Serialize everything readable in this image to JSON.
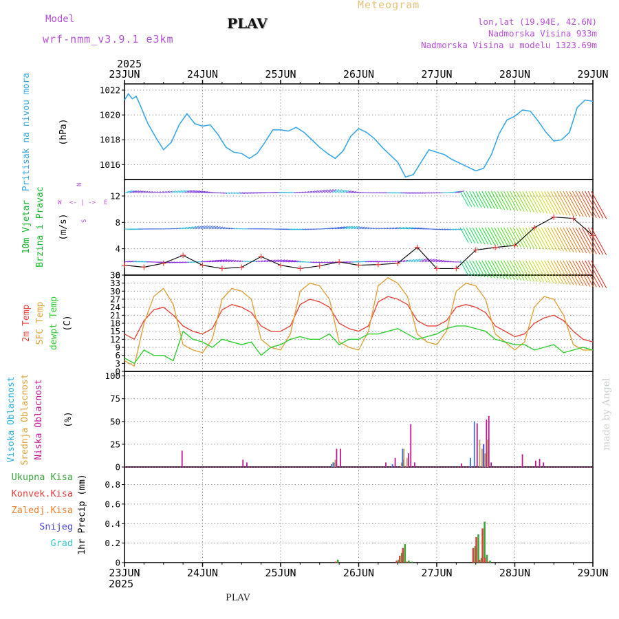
{
  "header": {
    "model_label": "Model",
    "model_run": "wrf-nmm_v3.9.1  e3km",
    "place": "PLAV",
    "title": "Meteogram",
    "coords": "lon,lat (19.94E, 42.6N)",
    "elevation": "Nadmorska Visina 933m",
    "model_elevation": "Nadmorska Visina u modelu 1323.69m",
    "credit": "made by Angel",
    "footer_place": "PLAV"
  },
  "colors": {
    "pressure": "#3aa7e6",
    "temp2m": "#e8473c",
    "sfc_temp": "#e0a13a",
    "dewpt": "#2fcf2f",
    "high_cloud": "#3f6fe0",
    "mid_cloud": "#b7a05a",
    "low_cloud": "#c2158f",
    "total_precip": "#3aa63a",
    "conv_precip": "#e04040",
    "frozen_precip": "#f08030",
    "snow": "#4a4ae0",
    "graupel": "#39c6c6"
  },
  "chart_data": [
    {
      "type": "line",
      "panel": "pressure",
      "ylabel": [
        "Pritisak na nivou mora",
        "(hPa)"
      ],
      "x_axis": {
        "year": "2025",
        "ticks": [
          "23JUN",
          "24JUN",
          "25JUN",
          "26JUN",
          "27JUN",
          "28JUN",
          "29JUN"
        ],
        "xlim_days": [
          0,
          6
        ]
      },
      "ylim": [
        1014.8,
        1022.5
      ],
      "yticks": [
        1016,
        1018,
        1020,
        1022
      ],
      "x": [
        0,
        0.05,
        0.1,
        0.15,
        0.2,
        0.3,
        0.4,
        0.5,
        0.6,
        0.7,
        0.8,
        0.9,
        1,
        1.1,
        1.2,
        1.3,
        1.4,
        1.5,
        1.6,
        1.7,
        1.8,
        1.9,
        2,
        2.1,
        2.2,
        2.3,
        2.4,
        2.5,
        2.6,
        2.7,
        2.8,
        2.9,
        3,
        3.1,
        3.2,
        3.3,
        3.4,
        3.5,
        3.6,
        3.7,
        3.8,
        3.9,
        4,
        4.1,
        4.2,
        4.3,
        4.4,
        4.5,
        4.6,
        4.7,
        4.8,
        4.9,
        5,
        5.1,
        5.2,
        5.3,
        5.4,
        5.5,
        5.6,
        5.7,
        5.8,
        5.9,
        6
      ],
      "values": [
        1021.2,
        1021.7,
        1021.3,
        1021.5,
        1020.8,
        1019.3,
        1018.2,
        1017.2,
        1017.8,
        1019.2,
        1020.1,
        1019.3,
        1019.1,
        1019.2,
        1018.4,
        1017.4,
        1017.0,
        1016.9,
        1016.5,
        1016.9,
        1017.8,
        1018.8,
        1018.8,
        1018.7,
        1019.0,
        1018.6,
        1018.0,
        1017.4,
        1016.9,
        1016.5,
        1017.1,
        1018.3,
        1018.9,
        1018.6,
        1018.1,
        1017.4,
        1016.8,
        1016.2,
        1015.0,
        1015.2,
        1016.2,
        1017.2,
        1017.0,
        1016.8,
        1016.4,
        1016.1,
        1015.8,
        1015.5,
        1015.7,
        1016.8,
        1018.5,
        1019.6,
        1019.9,
        1020.4,
        1020.3,
        1019.5,
        1018.6,
        1017.9,
        1018.0,
        1018.6,
        1020.6,
        1021.2,
        1021.1
      ]
    },
    {
      "type": "line",
      "panel": "wind",
      "ylabel": [
        "10m Vjetar",
        "Brzina i Pravac",
        "(m/s)"
      ],
      "direction_legend": [
        "N",
        "W",
        "E",
        "S",
        "<- | ->"
      ],
      "ylim": [
        0,
        14.5
      ],
      "yticks": [
        0,
        4,
        8,
        12
      ],
      "rows": [
        2,
        7,
        12.5
      ],
      "x": [
        0,
        0.25,
        0.5,
        0.75,
        1,
        1.25,
        1.5,
        1.75,
        2,
        2.25,
        2.5,
        2.75,
        3,
        3.25,
        3.5,
        3.75,
        4,
        4.25,
        4.5,
        4.75,
        5,
        5.25,
        5.5,
        5.75,
        6
      ],
      "speed": [
        1.5,
        1.2,
        1.8,
        3.0,
        1.5,
        1.0,
        1.2,
        2.8,
        1.5,
        1.0,
        1.4,
        2.0,
        1.5,
        1.6,
        1.8,
        4.2,
        1.0,
        1.0,
        3.8,
        4.2,
        4.5,
        7.2,
        8.8,
        8.6,
        6.0
      ]
    },
    {
      "type": "line",
      "panel": "temperature",
      "ylabel": [
        "2m Temp",
        "SFC Temp",
        "dewpt Temp",
        "(C)"
      ],
      "ylim": [
        0,
        36
      ],
      "yticks": [
        0,
        3,
        6,
        9,
        12,
        15,
        18,
        21,
        24,
        27,
        30,
        33,
        36
      ],
      "x": [
        0,
        0.125,
        0.25,
        0.375,
        0.5,
        0.625,
        0.75,
        0.875,
        1,
        1.125,
        1.25,
        1.375,
        1.5,
        1.625,
        1.75,
        1.875,
        2,
        2.125,
        2.25,
        2.375,
        2.5,
        2.625,
        2.75,
        2.875,
        3,
        3.125,
        3.25,
        3.375,
        3.5,
        3.625,
        3.75,
        3.875,
        4,
        4.125,
        4.25,
        4.375,
        4.5,
        4.625,
        4.75,
        4.875,
        5,
        5.125,
        5.25,
        5.375,
        5.5,
        5.625,
        5.75,
        5.875,
        6
      ],
      "series": [
        {
          "name": "2m Temp",
          "values": [
            14,
            12,
            19,
            23,
            24,
            21,
            17,
            15,
            14,
            16,
            23,
            25,
            24,
            22,
            17,
            15,
            15,
            17,
            25,
            27,
            26,
            24,
            18,
            16,
            15,
            17,
            26,
            28,
            27,
            25,
            19,
            17,
            17,
            19,
            24,
            25,
            24,
            22,
            17,
            15,
            13,
            14,
            18,
            20,
            21,
            19,
            15,
            12,
            11
          ]
        },
        {
          "name": "SFC Temp",
          "values": [
            4,
            2,
            18,
            28,
            31,
            25,
            10,
            8,
            7,
            12,
            27,
            31,
            30,
            27,
            12,
            9,
            8,
            14,
            30,
            33,
            32,
            27,
            11,
            9,
            8,
            15,
            32,
            35,
            33,
            28,
            14,
            11,
            10,
            15,
            30,
            33,
            32,
            27,
            14,
            11,
            8,
            11,
            24,
            28,
            27,
            21,
            10,
            8,
            8
          ]
        },
        {
          "name": "dewpt Temp",
          "values": [
            5,
            3,
            8,
            6,
            6,
            4,
            15,
            12,
            11,
            9,
            12,
            11,
            10,
            11,
            6,
            9,
            10,
            12,
            13,
            12,
            12,
            14,
            10,
            12,
            12,
            14,
            14,
            15,
            16,
            14,
            12,
            13,
            14,
            16,
            17,
            17,
            16,
            15,
            12,
            11,
            10,
            10,
            8,
            9,
            10,
            7,
            8,
            9,
            8
          ]
        }
      ]
    },
    {
      "type": "bar",
      "panel": "clouds",
      "ylabel": [
        "Visoka Oblacnost",
        "Srednja Oblacnost",
        "Niska Oblacnost",
        "(%)"
      ],
      "ylim": [
        0,
        105
      ],
      "yticks": [
        0,
        25,
        50,
        75,
        100
      ],
      "x": [
        0.72,
        1.5,
        1.55,
        2.67,
        2.7,
        2.75,
        2.8,
        3.33,
        3.45,
        3.55,
        3.58,
        3.62,
        3.65,
        3.7,
        4.3,
        4.45,
        4.5,
        4.55,
        4.58,
        4.62,
        4.65,
        4.68,
        5.08,
        5.25,
        5.3,
        5.35
      ],
      "series": [
        {
          "name": "Visoka Oblacnost",
          "values": [
            0,
            0,
            0,
            3,
            5,
            0,
            0,
            0,
            3,
            0,
            20,
            0,
            0,
            0,
            0,
            10,
            50,
            0,
            0,
            25,
            0,
            0,
            0,
            0,
            0,
            0
          ]
        },
        {
          "name": "Srednja Oblacnost",
          "values": [
            0,
            0,
            0,
            5,
            8,
            0,
            0,
            0,
            0,
            5,
            20,
            10,
            0,
            0,
            0,
            0,
            0,
            30,
            20,
            15,
            30,
            0,
            0,
            0,
            0,
            0
          ]
        },
        {
          "name": "Niska Oblacnost",
          "values": [
            18,
            8,
            5,
            0,
            20,
            20,
            0,
            5,
            10,
            8,
            0,
            15,
            47,
            5,
            4,
            0,
            48,
            0,
            25,
            52,
            56,
            5,
            14,
            7,
            9,
            5
          ]
        }
      ]
    },
    {
      "type": "bar",
      "panel": "precipitation",
      "ylabel": [
        "1hr Precip (mm)"
      ],
      "legend": [
        "Ukupna Kisa",
        "Konvek.Kisa",
        "Zaledj.Kisa",
        "Snijeg",
        "Grad"
      ],
      "ylim": [
        0,
        0.98
      ],
      "yticks": [
        0,
        0.2,
        0.4,
        0.6,
        0.8
      ],
      "x": [
        2.72,
        3.5,
        3.54,
        3.58,
        3.63,
        3.67,
        4.48,
        4.52,
        4.56,
        4.6,
        4.63,
        4.67
      ],
      "series": [
        {
          "name": "Ukupna Kisa",
          "values": [
            0.03,
            0.03,
            0.1,
            0.19,
            0.02,
            0.01,
            0.17,
            0.29,
            0.05,
            0.42,
            0.08,
            0.02
          ]
        },
        {
          "name": "Konvek.Kisa",
          "values": [
            0.01,
            0.02,
            0.07,
            0.15,
            0.01,
            0,
            0.15,
            0.26,
            0.03,
            0.35,
            0.05,
            0.01
          ]
        }
      ]
    }
  ]
}
